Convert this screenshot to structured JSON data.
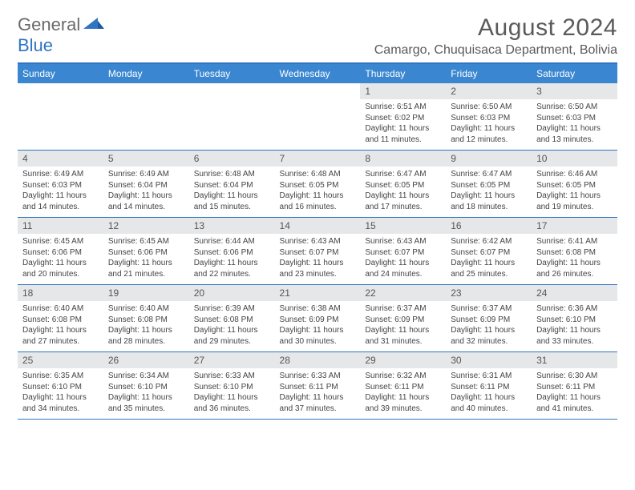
{
  "brand": {
    "part1": "General",
    "part2": "Blue"
  },
  "title": "August 2024",
  "location": "Camargo, Chuquisaca Department, Bolivia",
  "colors": {
    "header_bg": "#3a86d0",
    "rule": "#2f75c1",
    "daynum_bg": "#e6e7e8",
    "brand_gray": "#6a6a6a",
    "brand_blue": "#2f75c1"
  },
  "weekdays": [
    "Sunday",
    "Monday",
    "Tuesday",
    "Wednesday",
    "Thursday",
    "Friday",
    "Saturday"
  ],
  "weeks": [
    {
      "nums": [
        "",
        "",
        "",
        "",
        "1",
        "2",
        "3"
      ],
      "details": [
        "",
        "",
        "",
        "",
        "Sunrise: 6:51 AM\nSunset: 6:02 PM\nDaylight: 11 hours and 11 minutes.",
        "Sunrise: 6:50 AM\nSunset: 6:03 PM\nDaylight: 11 hours and 12 minutes.",
        "Sunrise: 6:50 AM\nSunset: 6:03 PM\nDaylight: 11 hours and 13 minutes."
      ]
    },
    {
      "nums": [
        "4",
        "5",
        "6",
        "7",
        "8",
        "9",
        "10"
      ],
      "details": [
        "Sunrise: 6:49 AM\nSunset: 6:03 PM\nDaylight: 11 hours and 14 minutes.",
        "Sunrise: 6:49 AM\nSunset: 6:04 PM\nDaylight: 11 hours and 14 minutes.",
        "Sunrise: 6:48 AM\nSunset: 6:04 PM\nDaylight: 11 hours and 15 minutes.",
        "Sunrise: 6:48 AM\nSunset: 6:05 PM\nDaylight: 11 hours and 16 minutes.",
        "Sunrise: 6:47 AM\nSunset: 6:05 PM\nDaylight: 11 hours and 17 minutes.",
        "Sunrise: 6:47 AM\nSunset: 6:05 PM\nDaylight: 11 hours and 18 minutes.",
        "Sunrise: 6:46 AM\nSunset: 6:05 PM\nDaylight: 11 hours and 19 minutes."
      ]
    },
    {
      "nums": [
        "11",
        "12",
        "13",
        "14",
        "15",
        "16",
        "17"
      ],
      "details": [
        "Sunrise: 6:45 AM\nSunset: 6:06 PM\nDaylight: 11 hours and 20 minutes.",
        "Sunrise: 6:45 AM\nSunset: 6:06 PM\nDaylight: 11 hours and 21 minutes.",
        "Sunrise: 6:44 AM\nSunset: 6:06 PM\nDaylight: 11 hours and 22 minutes.",
        "Sunrise: 6:43 AM\nSunset: 6:07 PM\nDaylight: 11 hours and 23 minutes.",
        "Sunrise: 6:43 AM\nSunset: 6:07 PM\nDaylight: 11 hours and 24 minutes.",
        "Sunrise: 6:42 AM\nSunset: 6:07 PM\nDaylight: 11 hours and 25 minutes.",
        "Sunrise: 6:41 AM\nSunset: 6:08 PM\nDaylight: 11 hours and 26 minutes."
      ]
    },
    {
      "nums": [
        "18",
        "19",
        "20",
        "21",
        "22",
        "23",
        "24"
      ],
      "details": [
        "Sunrise: 6:40 AM\nSunset: 6:08 PM\nDaylight: 11 hours and 27 minutes.",
        "Sunrise: 6:40 AM\nSunset: 6:08 PM\nDaylight: 11 hours and 28 minutes.",
        "Sunrise: 6:39 AM\nSunset: 6:08 PM\nDaylight: 11 hours and 29 minutes.",
        "Sunrise: 6:38 AM\nSunset: 6:09 PM\nDaylight: 11 hours and 30 minutes.",
        "Sunrise: 6:37 AM\nSunset: 6:09 PM\nDaylight: 11 hours and 31 minutes.",
        "Sunrise: 6:37 AM\nSunset: 6:09 PM\nDaylight: 11 hours and 32 minutes.",
        "Sunrise: 6:36 AM\nSunset: 6:10 PM\nDaylight: 11 hours and 33 minutes."
      ]
    },
    {
      "nums": [
        "25",
        "26",
        "27",
        "28",
        "29",
        "30",
        "31"
      ],
      "details": [
        "Sunrise: 6:35 AM\nSunset: 6:10 PM\nDaylight: 11 hours and 34 minutes.",
        "Sunrise: 6:34 AM\nSunset: 6:10 PM\nDaylight: 11 hours and 35 minutes.",
        "Sunrise: 6:33 AM\nSunset: 6:10 PM\nDaylight: 11 hours and 36 minutes.",
        "Sunrise: 6:33 AM\nSunset: 6:11 PM\nDaylight: 11 hours and 37 minutes.",
        "Sunrise: 6:32 AM\nSunset: 6:11 PM\nDaylight: 11 hours and 39 minutes.",
        "Sunrise: 6:31 AM\nSunset: 6:11 PM\nDaylight: 11 hours and 40 minutes.",
        "Sunrise: 6:30 AM\nSunset: 6:11 PM\nDaylight: 11 hours and 41 minutes."
      ]
    }
  ]
}
